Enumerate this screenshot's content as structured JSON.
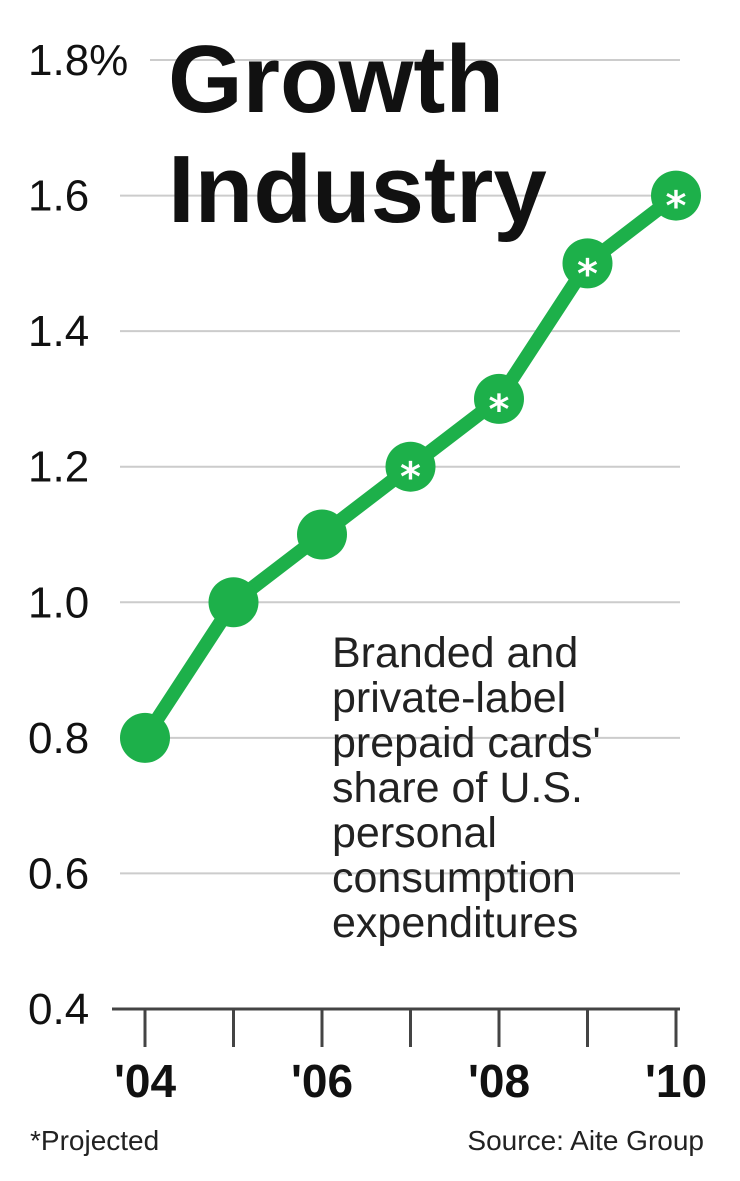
{
  "title_line1": "Growth",
  "title_line2": "Industry",
  "description": [
    "Branded and",
    "private-label",
    "prepaid cards'",
    "share of U.S.",
    "personal",
    "consumption",
    "expenditures"
  ],
  "footnote": "*Projected",
  "source": "Source: Aite Group",
  "colors": {
    "series": "#1db04a",
    "grid": "#cccccc",
    "axis": "#444444"
  },
  "chart_data": {
    "type": "line",
    "y_tick_labels": [
      "0.4",
      "0.6",
      "0.8",
      "1.0",
      "1.2",
      "1.4",
      "1.6",
      "1.8%"
    ],
    "y_ticks": [
      0.4,
      0.6,
      0.8,
      1.0,
      1.2,
      1.4,
      1.6,
      1.8
    ],
    "ylim": [
      0.4,
      1.8
    ],
    "x_tick_labels": [
      "'04",
      "'06",
      "'08",
      "'10"
    ],
    "x_ticks": [
      2004,
      2006,
      2008,
      2010
    ],
    "xlim": [
      2004,
      2010
    ],
    "series": [
      {
        "x": [
          2004,
          2005,
          2006,
          2007,
          2008,
          2009,
          2010
        ],
        "values": [
          0.8,
          1.0,
          1.1,
          1.2,
          1.3,
          1.5,
          1.6
        ],
        "projected": [
          false,
          false,
          false,
          true,
          true,
          true,
          true
        ]
      }
    ],
    "projected_marker": "*",
    "grid": true
  }
}
